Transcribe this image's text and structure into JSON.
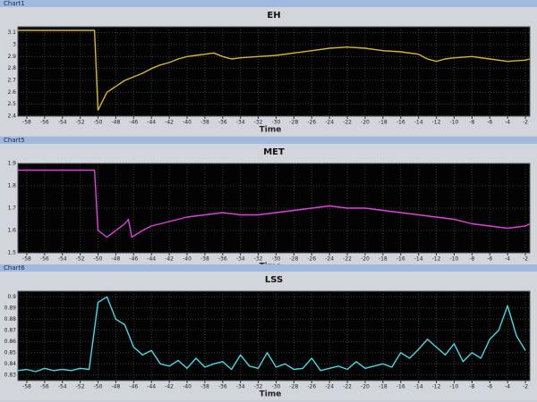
{
  "chart_data": [
    {
      "type": "line",
      "window_title": "Chart1",
      "title": "EH",
      "xlabel": "Time",
      "color": "#d8b628",
      "grid": true,
      "xlim": [
        -59,
        -1.5
      ],
      "ylim": [
        2.4,
        3.15
      ],
      "xticks": [
        -58,
        -56,
        -54,
        -52,
        -50,
        -48,
        -46,
        -44,
        -42,
        -40,
        -38,
        -36,
        -34,
        -32,
        -30,
        -28,
        -26,
        -24,
        -22,
        -20,
        -18,
        -16,
        -14,
        -12,
        -10,
        -8,
        -6,
        -4,
        -2
      ],
      "yticks": [
        2.4,
        2.5,
        2.6,
        2.7,
        2.8,
        2.9,
        3,
        3.1
      ],
      "x": [
        -59,
        -50.4,
        -50,
        -49,
        -48,
        -47,
        -46,
        -45,
        -44,
        -43,
        -42,
        -41,
        -40,
        -39,
        -38,
        -37,
        -36,
        -35,
        -34,
        -32,
        -30,
        -28,
        -26,
        -24,
        -22,
        -20,
        -18,
        -16,
        -14,
        -13,
        -12,
        -11,
        -10,
        -8,
        -6,
        -4,
        -2,
        -1.5
      ],
      "values": [
        3.12,
        3.12,
        2.45,
        2.6,
        2.65,
        2.7,
        2.73,
        2.76,
        2.8,
        2.83,
        2.85,
        2.88,
        2.9,
        2.91,
        2.92,
        2.93,
        2.9,
        2.88,
        2.89,
        2.9,
        2.91,
        2.93,
        2.95,
        2.97,
        2.98,
        2.97,
        2.95,
        2.94,
        2.92,
        2.88,
        2.86,
        2.88,
        2.89,
        2.9,
        2.88,
        2.86,
        2.87,
        2.88
      ]
    },
    {
      "type": "line",
      "window_title": "Chart5",
      "title": "MET",
      "xlabel": "Time",
      "color": "#e040e0",
      "grid": true,
      "xlim": [
        -59,
        -1.5
      ],
      "ylim": [
        1.5,
        1.9
      ],
      "xticks": [
        -58,
        -56,
        -54,
        -52,
        -50,
        -48,
        -46,
        -44,
        -42,
        -40,
        -38,
        -36,
        -34,
        -32,
        -30,
        -28,
        -26,
        -24,
        -22,
        -20,
        -18,
        -16,
        -14,
        -12,
        -10,
        -8,
        -6,
        -4,
        -2
      ],
      "yticks": [
        1.5,
        1.6,
        1.7,
        1.8,
        1.9
      ],
      "x": [
        -59,
        -50.4,
        -50,
        -49,
        -48,
        -47,
        -46.6,
        -46.2,
        -45,
        -44,
        -42,
        -40,
        -38,
        -36,
        -34,
        -32,
        -30,
        -28,
        -26,
        -24,
        -22,
        -20,
        -18,
        -16,
        -14,
        -12,
        -10,
        -8,
        -6,
        -4,
        -2,
        -1.5
      ],
      "values": [
        1.87,
        1.87,
        1.6,
        1.57,
        1.6,
        1.63,
        1.65,
        1.57,
        1.6,
        1.62,
        1.64,
        1.66,
        1.67,
        1.68,
        1.67,
        1.67,
        1.68,
        1.69,
        1.7,
        1.71,
        1.7,
        1.7,
        1.69,
        1.68,
        1.67,
        1.66,
        1.65,
        1.63,
        1.62,
        1.61,
        1.62,
        1.63
      ]
    },
    {
      "type": "line",
      "window_title": "Chart6",
      "title": "LSS",
      "xlabel": "Time",
      "color": "#45d8e8",
      "grid": true,
      "xlim": [
        -59,
        -1.5
      ],
      "ylim": [
        0.825,
        0.905
      ],
      "xticks": [
        -58,
        -56,
        -54,
        -52,
        -50,
        -48,
        -46,
        -44,
        -42,
        -40,
        -38,
        -36,
        -34,
        -32,
        -30,
        -28,
        -26,
        -24,
        -22,
        -20,
        -18,
        -16,
        -14,
        -12,
        -10,
        -8,
        -6,
        -4,
        -2
      ],
      "yticks": [
        0.83,
        0.84,
        0.85,
        0.86,
        0.87,
        0.88,
        0.89,
        0.9
      ],
      "x": [
        -59,
        -58,
        -57,
        -56,
        -55,
        -54,
        -53,
        -52,
        -51,
        -50,
        -49,
        -48,
        -47,
        -46,
        -45,
        -44,
        -43,
        -42,
        -41,
        -40,
        -39,
        -38,
        -37,
        -36,
        -35,
        -34,
        -33,
        -32,
        -31,
        -30,
        -29,
        -28,
        -27,
        -26,
        -25,
        -24,
        -23,
        -22,
        -21,
        -20,
        -19,
        -18,
        -17,
        -16,
        -15,
        -14,
        -13,
        -12,
        -11,
        -10,
        -9,
        -8,
        -7,
        -6,
        -5,
        -4,
        -3,
        -2
      ],
      "values": [
        0.834,
        0.835,
        0.833,
        0.836,
        0.834,
        0.835,
        0.834,
        0.836,
        0.835,
        0.895,
        0.9,
        0.88,
        0.875,
        0.855,
        0.848,
        0.852,
        0.84,
        0.838,
        0.843,
        0.836,
        0.845,
        0.837,
        0.84,
        0.842,
        0.835,
        0.848,
        0.838,
        0.836,
        0.85,
        0.837,
        0.84,
        0.835,
        0.836,
        0.845,
        0.834,
        0.836,
        0.838,
        0.835,
        0.842,
        0.836,
        0.838,
        0.84,
        0.837,
        0.85,
        0.845,
        0.853,
        0.862,
        0.855,
        0.848,
        0.858,
        0.842,
        0.85,
        0.845,
        0.862,
        0.87,
        0.892,
        0.865,
        0.852
      ]
    }
  ]
}
